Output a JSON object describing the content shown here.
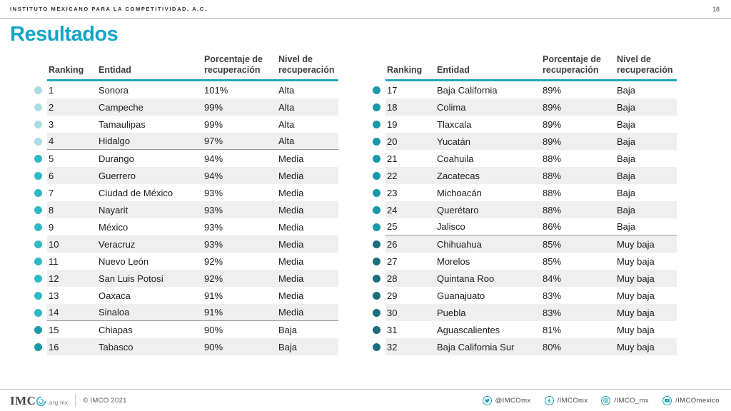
{
  "topbar": {
    "org": "INSTITUTO MEXICANO PARA LA COMPETITIVIDAD, A.C.",
    "page_number": "18"
  },
  "title": "Resultados",
  "column_headers": {
    "ranking": "Ranking",
    "entidad": "Entidad",
    "porcentaje": "Porcentaje de recuperación",
    "nivel": "Nivel de recuperación"
  },
  "levels": {
    "Alta": "#a9dde6",
    "Media": "#2fb9c6",
    "Baja": "#1899ab",
    "Muy baja": "#1a6f7d"
  },
  "separator_after_ranks": [
    4,
    14,
    25
  ],
  "tables": [
    {
      "rows": [
        {
          "ranking": "1",
          "entidad": "Sonora",
          "porcentaje": "101%",
          "nivel": "Alta"
        },
        {
          "ranking": "2",
          "entidad": "Campeche",
          "porcentaje": "99%",
          "nivel": "Alta"
        },
        {
          "ranking": "3",
          "entidad": "Tamaulipas",
          "porcentaje": "99%",
          "nivel": "Alta"
        },
        {
          "ranking": "4",
          "entidad": "Hidalgo",
          "porcentaje": "97%",
          "nivel": "Alta"
        },
        {
          "ranking": "5",
          "entidad": "Durango",
          "porcentaje": "94%",
          "nivel": "Media"
        },
        {
          "ranking": "6",
          "entidad": "Guerrero",
          "porcentaje": "94%",
          "nivel": "Media"
        },
        {
          "ranking": "7",
          "entidad": "Ciudad de México",
          "porcentaje": "93%",
          "nivel": "Media"
        },
        {
          "ranking": "8",
          "entidad": "Nayarit",
          "porcentaje": "93%",
          "nivel": "Media"
        },
        {
          "ranking": "9",
          "entidad": "México",
          "porcentaje": "93%",
          "nivel": "Media"
        },
        {
          "ranking": "10",
          "entidad": "Veracruz",
          "porcentaje": "93%",
          "nivel": "Media"
        },
        {
          "ranking": "11",
          "entidad": "Nuevo León",
          "porcentaje": "92%",
          "nivel": "Media"
        },
        {
          "ranking": "12",
          "entidad": "San Luis Potosí",
          "porcentaje": "92%",
          "nivel": "Media"
        },
        {
          "ranking": "13",
          "entidad": "Oaxaca",
          "porcentaje": "91%",
          "nivel": "Media"
        },
        {
          "ranking": "14",
          "entidad": "Sinaloa",
          "porcentaje": "91%",
          "nivel": "Media"
        },
        {
          "ranking": "15",
          "entidad": "Chiapas",
          "porcentaje": "90%",
          "nivel": "Baja"
        },
        {
          "ranking": "16",
          "entidad": "Tabasco",
          "porcentaje": "90%",
          "nivel": "Baja"
        }
      ]
    },
    {
      "rows": [
        {
          "ranking": "17",
          "entidad": "Baja California",
          "porcentaje": "89%",
          "nivel": "Baja"
        },
        {
          "ranking": "18",
          "entidad": "Colima",
          "porcentaje": "89%",
          "nivel": "Baja"
        },
        {
          "ranking": "19",
          "entidad": "Tlaxcala",
          "porcentaje": "89%",
          "nivel": "Baja"
        },
        {
          "ranking": "20",
          "entidad": "Yucatán",
          "porcentaje": "89%",
          "nivel": "Baja"
        },
        {
          "ranking": "21",
          "entidad": "Coahuila",
          "porcentaje": "88%",
          "nivel": "Baja"
        },
        {
          "ranking": "22",
          "entidad": "Zacatecas",
          "porcentaje": "88%",
          "nivel": "Baja"
        },
        {
          "ranking": "23",
          "entidad": "Michoacán",
          "porcentaje": "88%",
          "nivel": "Baja"
        },
        {
          "ranking": "24",
          "entidad": "Querétaro",
          "porcentaje": "88%",
          "nivel": "Baja"
        },
        {
          "ranking": "25",
          "entidad": "Jalisco",
          "porcentaje": "86%",
          "nivel": "Baja"
        },
        {
          "ranking": "26",
          "entidad": "Chihuahua",
          "porcentaje": "85%",
          "nivel": "Muy baja"
        },
        {
          "ranking": "27",
          "entidad": "Morelos",
          "porcentaje": "85%",
          "nivel": "Muy baja"
        },
        {
          "ranking": "28",
          "entidad": "Quintana Roo",
          "porcentaje": "84%",
          "nivel": "Muy baja"
        },
        {
          "ranking": "29",
          "entidad": "Guanajuato",
          "porcentaje": "83%",
          "nivel": "Muy baja"
        },
        {
          "ranking": "30",
          "entidad": "Puebla",
          "porcentaje": "83%",
          "nivel": "Muy baja"
        },
        {
          "ranking": "31",
          "entidad": "Aguascalientes",
          "porcentaje": "81%",
          "nivel": "Muy baja"
        },
        {
          "ranking": "32",
          "entidad": "Baja California Sur",
          "porcentaje": "80%",
          "nivel": "Muy baja"
        }
      ]
    }
  ],
  "footer": {
    "logo": {
      "text": "IMC",
      "suffix": ".org.mx"
    },
    "copyright": "© IMCO 2021",
    "social": [
      {
        "icon": "twitter-icon",
        "label": "@IMCOmx"
      },
      {
        "icon": "facebook-icon",
        "label": "/IMCOmx"
      },
      {
        "icon": "instagram-icon",
        "label": "/IMCO_mx"
      },
      {
        "icon": "youtube-icon",
        "label": "/IMCOmexico"
      }
    ]
  },
  "colors": {
    "accent": "#13a5c6",
    "table_rule": "#25a6b5",
    "alt_row": "#efefef"
  }
}
